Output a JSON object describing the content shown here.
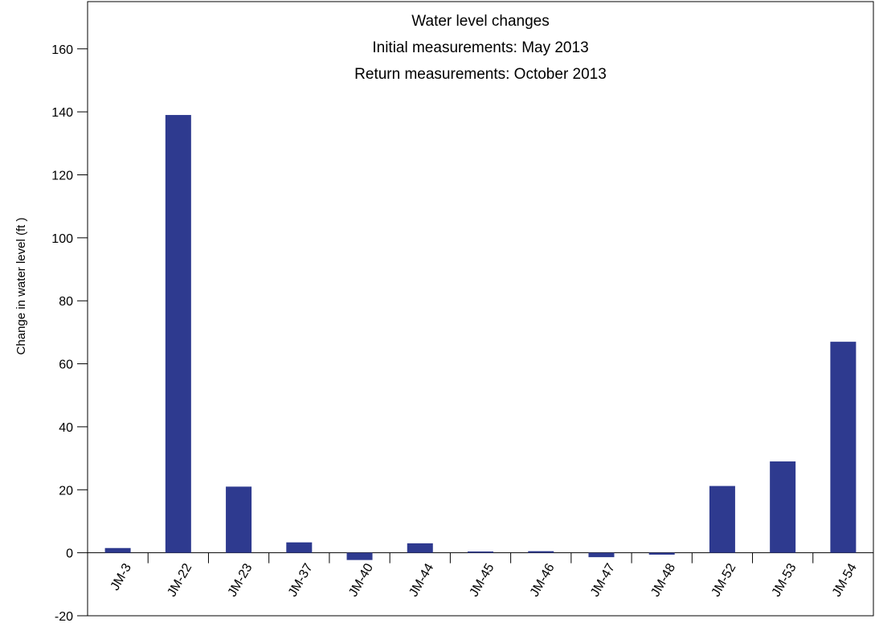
{
  "chart_data": {
    "type": "bar",
    "title_lines": [
      "Water level changes",
      "Initial measurements: May 2013",
      "Return measurements: October 2013"
    ],
    "ylabel": "Change in water level (ft )",
    "xlabel": "",
    "categories": [
      "JM-3",
      "JM-22",
      "JM-23",
      "JM-37",
      "JM-40",
      "JM-44",
      "JM-45",
      "JM-46",
      "JM-47",
      "JM-48",
      "JM-52",
      "JM-53",
      "JM-54"
    ],
    "values": [
      1.5,
      139,
      21,
      3.3,
      -2.3,
      3,
      0.4,
      0.5,
      -1.4,
      -0.6,
      21.2,
      29,
      67
    ],
    "ylim": [
      -20,
      175
    ],
    "yticks": [
      -20,
      0,
      20,
      40,
      60,
      80,
      100,
      120,
      140,
      160
    ],
    "ytick_labels": [
      "-20",
      "0",
      "20",
      "40",
      "60",
      "80",
      "100",
      "120",
      "140",
      "160"
    ],
    "bar_color": "#2e3a8f",
    "grid": false,
    "legend": "none"
  }
}
